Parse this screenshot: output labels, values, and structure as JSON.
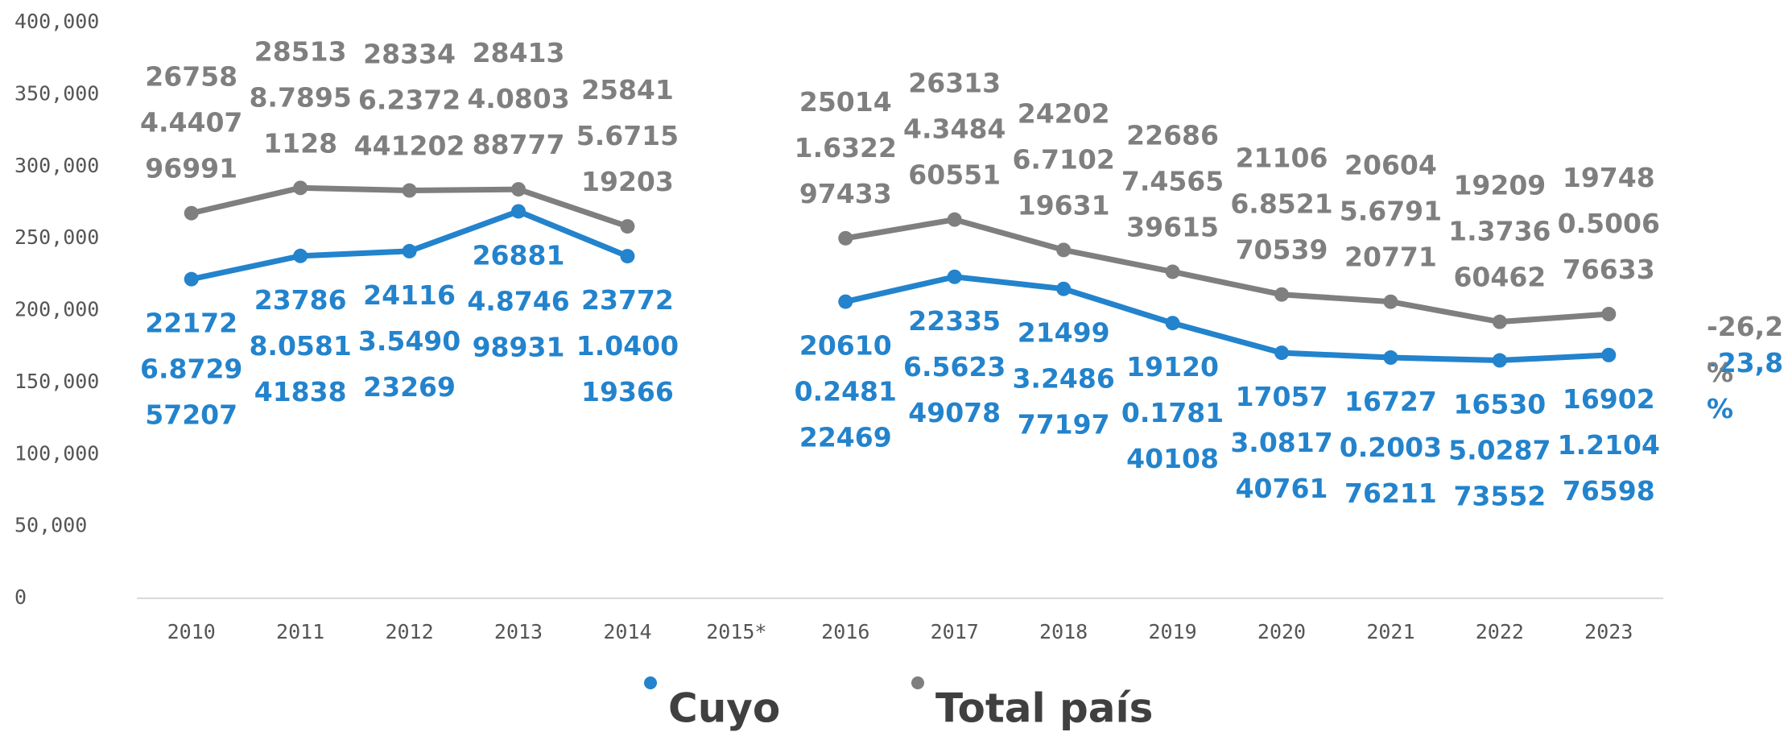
{
  "chart_data": {
    "type": "line",
    "categories": [
      "2010",
      "2011",
      "2012",
      "2013",
      "2014",
      "2015*",
      "2016",
      "2017",
      "2018",
      "2019",
      "2020",
      "2021",
      "2022",
      "2023"
    ],
    "series": [
      {
        "name": "Cuyo",
        "color": "#2383cc",
        "values": [
          221726.872957207,
          237868.058141838,
          241163.549023269,
          268814.874698931,
          237721.040019366,
          null,
          206100.248122469,
          223356.562349078,
          214993.248677197,
          191200.178140108,
          170573.081740761,
          167270.200376211,
          165305.028773552,
          169021.210476598
        ]
      },
      {
        "name": "Total país",
        "color": "#7f7f7f",
        "values": [
          267584.440796991,
          285138.78951128,
          283346.2372441202,
          284134.080388777,
          258415.671519203,
          null,
          250141.632297433,
          263134.348460551,
          242026.710219631,
          226867.456539615,
          211066.852170539,
          206045.679120771,
          192091.373660462,
          197480.500676633
        ]
      }
    ],
    "annotations": [
      "-26,2 %",
      "-23,8 %"
    ],
    "ylim": [
      0,
      400000
    ],
    "yticks": [
      0,
      {
        "value": 50000,
        "label": "50,000"
      },
      {
        "value": 100000,
        "label": "100,000"
      },
      {
        "value": 150000,
        "label": "150,000"
      },
      {
        "value": 200000,
        "label": "200,000"
      },
      {
        "value": 250000,
        "label": "250,000"
      },
      {
        "value": 300000,
        "label": "300,000"
      },
      {
        "value": 350000,
        "label": "350,000"
      },
      {
        "value": 400000,
        "label": "400,000"
      }
    ],
    "grid": false
  }
}
